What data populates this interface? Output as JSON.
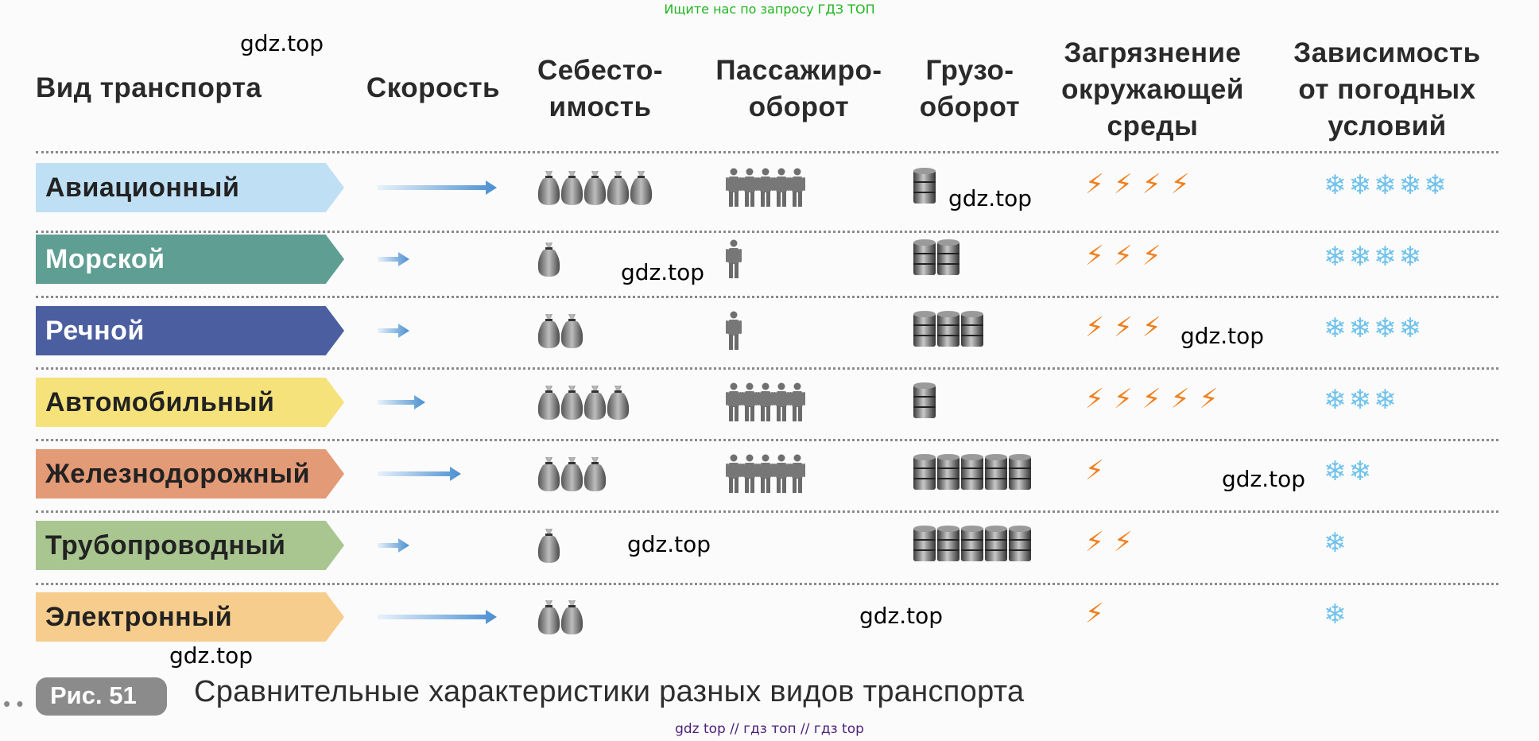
{
  "top_banner": "Ищите нас по запросу ГДЗ ТОП",
  "watermarks": [
    "gdz.top",
    "gdz.top",
    "gdz.top",
    "gdz.top",
    "gdz.top",
    "gdz.top",
    "gdz.top",
    "gdz.top"
  ],
  "headers": {
    "type": "Вид транспорта",
    "speed": "Скорость",
    "cost_1": "Себесто-",
    "cost_2": "имость",
    "pass_1": "Пассажиро-",
    "pass_2": "оборот",
    "cargo_1": "Грузо-",
    "cargo_2": "оборот",
    "poll_1": "Загрязнение",
    "poll_2": "окружающей",
    "poll_3": "среды",
    "weather_1": "Зависимость",
    "weather_2": "от погодных",
    "weather_3": "условий"
  },
  "rows": [
    {
      "name": "Авиационный",
      "color": "#bfe0f4",
      "text_color": "#222222",
      "speed_level": "very-high",
      "cost": 5,
      "passengers": 5,
      "cargo": 1,
      "pollution": 4,
      "weather": 5
    },
    {
      "name": "Морской",
      "color": "#5f9e93",
      "text_color": "#ffffff",
      "speed_level": "low",
      "cost": 1,
      "passengers": 1,
      "cargo": 2,
      "pollution": 3,
      "weather": 4
    },
    {
      "name": "Речной",
      "color": "#4b5fa0",
      "text_color": "#ffffff",
      "speed_level": "low",
      "cost": 2,
      "passengers": 1,
      "cargo": 3,
      "pollution": 3,
      "weather": 4
    },
    {
      "name": "Автомобильный",
      "color": "#f5e27a",
      "text_color": "#222222",
      "speed_level": "medium",
      "cost": 4,
      "passengers": 5,
      "cargo": 1,
      "pollution": 5,
      "weather": 3
    },
    {
      "name": "Железнодорожный",
      "color": "#e39a76",
      "text_color": "#222222",
      "speed_level": "medium-high",
      "cost": 3,
      "passengers": 5,
      "cargo": 5,
      "pollution": 1,
      "weather": 2
    },
    {
      "name": "Трубопроводный",
      "color": "#a9c690",
      "text_color": "#222222",
      "speed_level": "low",
      "cost": 1,
      "passengers": 0,
      "cargo": 5,
      "pollution": 2,
      "weather": 1
    },
    {
      "name": "Электронный",
      "color": "#f6cd8c",
      "text_color": "#222222",
      "speed_level": "very-high",
      "cost": 2,
      "passengers": 0,
      "cargo": 0,
      "pollution": 1,
      "weather": 1
    }
  ],
  "icons": {
    "speed": "arrow-icon",
    "cost": "money-bag-icon",
    "passengers": "person-icon",
    "cargo": "barrel-icon",
    "pollution": "lightning-icon",
    "weather": "snowflake-icon"
  },
  "caption_label": "Рис. 51",
  "caption": "Сравнительные характеристики разных видов транспорта",
  "footer": "gdz top  //  гдз топ  //  гдз top"
}
